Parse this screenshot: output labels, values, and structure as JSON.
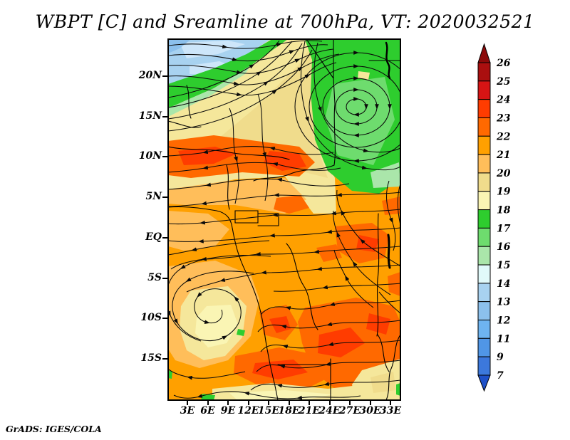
{
  "title": "WBPT [C] and Sreamline at 700hPa, VT: 2020032521",
  "attribution": "GrADS: IGES/COLA",
  "axes": {
    "lat_labels": [
      "20N",
      "15N",
      "10N",
      "5N",
      "EQ",
      "5S",
      "10S",
      "15S"
    ],
    "lon_labels": [
      "3E",
      "6E",
      "9E",
      "12E",
      "15E",
      "18E",
      "21E",
      "24E",
      "27E",
      "30E",
      "33E"
    ]
  },
  "colorbar": {
    "boundary_labels_top_to_bottom": [
      "26",
      "25",
      "24",
      "23",
      "22",
      "21",
      "20",
      "19",
      "18",
      "17",
      "16",
      "15",
      "14",
      "13",
      "12",
      "11",
      "9",
      "7"
    ],
    "colors_top_to_bottom": [
      "#8C0A0A",
      "#AA0F0F",
      "#D71414",
      "#FF3C00",
      "#FF6900",
      "#FFA000",
      "#FFBE5A",
      "#F0DC8C",
      "#FAF5B4",
      "#2ECD2E",
      "#6EDC6E",
      "#AAE6AA",
      "#E1FAFA",
      "#A8D2F0",
      "#8CC0EC",
      "#6EB4F0",
      "#5096E6",
      "#3C78DC",
      "#1E50C8"
    ],
    "top_arrow_meaning": "above 26",
    "bottom_arrow_meaning": "below 7"
  },
  "chart_data": {
    "type": "heatmap",
    "subtype": "filled-contour map with streamline overlay (GrADS)",
    "title": "WBPT [C] and Sreamline at 700hPa, VT: 2020032521",
    "variable": "WBPT (wet-bulb potential temperature)",
    "units": "C",
    "overlay": "streamlines at 700hPa",
    "pressure_level": "700hPa",
    "valid_time": "2020032521",
    "x_axis": {
      "label": "longitude",
      "ticks": [
        "3E",
        "6E",
        "9E",
        "12E",
        "15E",
        "18E",
        "21E",
        "24E",
        "27E",
        "30E",
        "33E"
      ],
      "range": [
        "0E",
        "33.5E"
      ]
    },
    "y_axis": {
      "label": "latitude",
      "ticks": [
        "20N",
        "15N",
        "10N",
        "5N",
        "EQ",
        "5S",
        "10S",
        "15S"
      ],
      "range": [
        "24N",
        "20S"
      ]
    },
    "color_levels_c": [
      7,
      9,
      11,
      12,
      13,
      14,
      15,
      16,
      17,
      18,
      19,
      20,
      21,
      22,
      23,
      24,
      25,
      26
    ],
    "colors_bottom_to_top": [
      "#1E50C8",
      "#3C78DC",
      "#5096E6",
      "#6EB4F0",
      "#8CC0EC",
      "#A8D2F0",
      "#E1FAFA",
      "#AAE6AA",
      "#6EDC6E",
      "#2ECD2E",
      "#FAF5B4",
      "#F0DC8C",
      "#FFBE5A",
      "#FFA000",
      "#FF6900",
      "#FF3C00",
      "#D71414",
      "#AA0F0F",
      "#8C0A0A"
    ],
    "legend_position": "right vertical color bar with arrow caps",
    "grid": "off",
    "field_summary": [
      {
        "area": "northwest corner (Sahara, ~20-24N, 0-13E)",
        "wbpt_c": "12-15, coolest, light blue"
      },
      {
        "area": "diagonal Sahel band (~17-20N rising NE)",
        "wbpt_c": "17-18, green strip"
      },
      {
        "area": "band south of green strip (~13-17N)",
        "wbpt_c": "18-20, pale yellow/tan"
      },
      {
        "area": "northeast quadrant (~5-23N, 20-33E)",
        "wbpt_c": "16-18, large green area under anticyclonic gyre"
      },
      {
        "area": "9-12N band and scattered central/eastern patches",
        "wbpt_c": "22-24, strong orange/red-orange"
      },
      {
        "area": "central and southern interior",
        "wbpt_c": "21-22, orange background"
      },
      {
        "area": "southeast cluster (~5-13S, 19-33E) and south-central band",
        "wbpt_c": "22-24, hottest patches"
      },
      {
        "area": "southwest swirl core (~5-10S, 3-10E)",
        "wbpt_c": "19-20, pale yellow"
      },
      {
        "area": "southern bottom strip (~16-19S)",
        "wbpt_c": "19-20, pale yellow band"
      }
    ],
    "flow_features": [
      "westerly flow across the Saharan northwest, turning northeastward over the Sahel band",
      "large closed anticyclonic (clockwise) gyre centered near 23E, 14N over the green northeast region",
      "broad easterly (right-to-left) flow between ~8N and 15S",
      "closed cyclonic swirl near 6E, 7S in the southwest",
      "southeasterly flow curving northwestward along the eastern flank toward the gyre"
    ]
  }
}
